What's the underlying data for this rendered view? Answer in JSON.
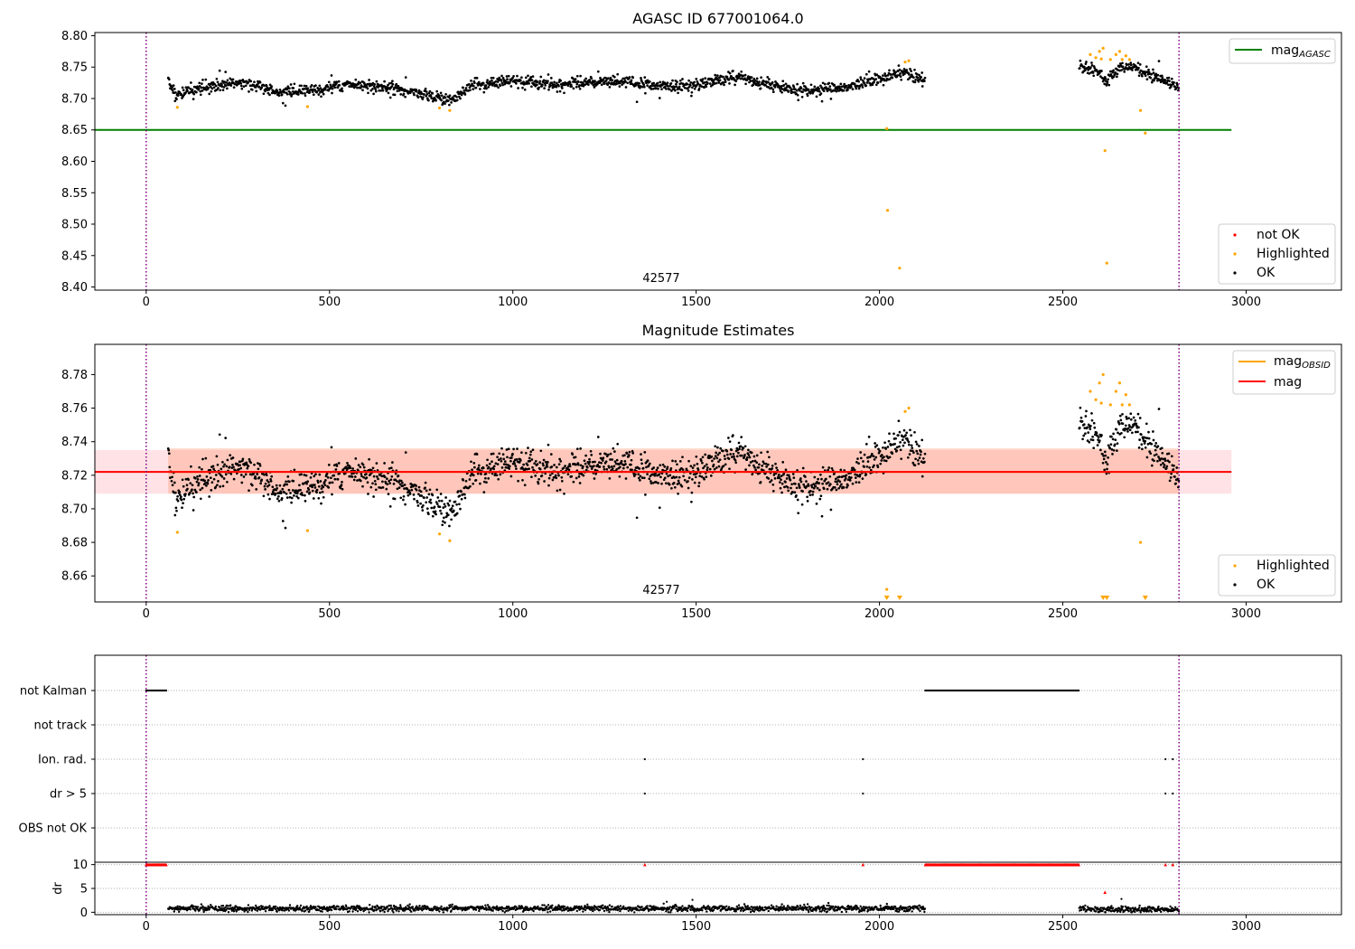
{
  "chart_data": [
    {
      "panel": "top",
      "type": "scatter",
      "title": "AGASC ID 677001064.0",
      "xlim": [
        -140,
        3260
      ],
      "ylim": [
        8.395,
        8.805
      ],
      "xticks": [
        0,
        500,
        1000,
        1500,
        2000,
        2500,
        3000
      ],
      "yticks": [
        "8.40",
        "8.45",
        "8.50",
        "8.55",
        "8.60",
        "8.65",
        "8.70",
        "8.75",
        "8.80"
      ],
      "obsid_annotation": {
        "text": "42577",
        "x": 1395
      },
      "vlines": [
        0,
        2817
      ],
      "hlines": [
        {
          "name": "mag_AGASC",
          "y": 8.65,
          "x": [
            -140,
            2960
          ],
          "color": "#008000"
        }
      ],
      "series": [
        {
          "name": "OK",
          "color": "#000000",
          "segments": [
            {
              "x": [
                60,
                2125
              ],
              "knots": [
                [
                  60,
                  8.73
                ],
                [
                  80,
                  8.705
                ],
                [
                  150,
                  8.715
                ],
                [
                  250,
                  8.728
                ],
                [
                  350,
                  8.712
                ],
                [
                  450,
                  8.712
                ],
                [
                  550,
                  8.722
                ],
                [
                  650,
                  8.718
                ],
                [
                  750,
                  8.708
                ],
                [
                  830,
                  8.698
                ],
                [
                  900,
                  8.722
                ],
                [
                  1000,
                  8.728
                ],
                [
                  1100,
                  8.722
                ],
                [
                  1200,
                  8.725
                ],
                [
                  1300,
                  8.728
                ],
                [
                  1400,
                  8.718
                ],
                [
                  1500,
                  8.722
                ],
                [
                  1600,
                  8.735
                ],
                [
                  1700,
                  8.722
                ],
                [
                  1800,
                  8.712
                ],
                [
                  1900,
                  8.718
                ],
                [
                  2000,
                  8.73
                ],
                [
                  2060,
                  8.742
                ],
                [
                  2125,
                  8.728
                ]
              ],
              "noise": 0.006
            },
            {
              "x": [
                2545,
                2817
              ],
              "knots": [
                [
                  2545,
                  8.752
                ],
                [
                  2600,
                  8.742
                ],
                [
                  2620,
                  8.73
                ],
                [
                  2660,
                  8.752
                ],
                [
                  2700,
                  8.748
                ],
                [
                  2750,
                  8.735
                ],
                [
                  2817,
                  8.72
                ]
              ],
              "noise": 0.006
            }
          ]
        },
        {
          "name": "Highlighted",
          "color": "#ffa500",
          "points": [
            [
              85,
              8.686
            ],
            [
              440,
              8.687
            ],
            [
              800,
              8.685
            ],
            [
              828,
              8.681
            ],
            [
              2020,
              8.652
            ],
            [
              2022,
              8.522
            ],
            [
              2055,
              8.43
            ],
            [
              2070,
              8.758
            ],
            [
              2080,
              8.76
            ],
            [
              2575,
              8.77
            ],
            [
              2590,
              8.765
            ],
            [
              2600,
              8.775
            ],
            [
              2610,
              8.78
            ],
            [
              2605,
              8.763
            ],
            [
              2615,
              8.617
            ],
            [
              2620,
              8.438
            ],
            [
              2630,
              8.762
            ],
            [
              2645,
              8.77
            ],
            [
              2655,
              8.775
            ],
            [
              2662,
              8.762
            ],
            [
              2672,
              8.768
            ],
            [
              2682,
              8.762
            ],
            [
              2712,
              8.681
            ],
            [
              2725,
              8.645
            ]
          ]
        },
        {
          "name": "not OK",
          "color": "#ff0000",
          "points": []
        }
      ],
      "legend_upper": [
        "mag_AGASC"
      ],
      "legend_lower": [
        "not OK",
        "Highlighted",
        "OK"
      ]
    },
    {
      "panel": "middle",
      "type": "scatter",
      "title": "Magnitude Estimates",
      "xlim": [
        -140,
        3260
      ],
      "ylim": [
        8.6445,
        8.798
      ],
      "xticks": [
        0,
        500,
        1000,
        1500,
        2000,
        2500,
        3000
      ],
      "yticks": [
        "8.66",
        "8.68",
        "8.70",
        "8.72",
        "8.74",
        "8.76",
        "8.78"
      ],
      "obsid_annotation": {
        "text": "42577",
        "x": 1395
      },
      "vlines": [
        0,
        2817
      ],
      "mag": {
        "y": 8.722,
        "band": [
          8.709,
          8.735
        ],
        "x": [
          -140,
          2960
        ],
        "line_color": "#ff0000",
        "band_color": "#ffb6c1"
      },
      "mag_obsid": {
        "y": 8.722,
        "band": [
          8.709,
          8.736
        ],
        "x": [
          60,
          2817
        ],
        "line_color": "#ffa500",
        "band_color": "#ffa07a"
      },
      "series": [
        {
          "name": "OK",
          "color": "#000000",
          "segments": [
            {
              "x": [
                60,
                2125
              ],
              "knots": [
                [
                  60,
                  8.733
                ],
                [
                  80,
                  8.705
                ],
                [
                  150,
                  8.715
                ],
                [
                  250,
                  8.728
                ],
                [
                  350,
                  8.712
                ],
                [
                  450,
                  8.712
                ],
                [
                  550,
                  8.722
                ],
                [
                  650,
                  8.718
                ],
                [
                  750,
                  8.708
                ],
                [
                  830,
                  8.698
                ],
                [
                  900,
                  8.722
                ],
                [
                  1000,
                  8.728
                ],
                [
                  1100,
                  8.722
                ],
                [
                  1200,
                  8.725
                ],
                [
                  1300,
                  8.728
                ],
                [
                  1400,
                  8.718
                ],
                [
                  1500,
                  8.722
                ],
                [
                  1600,
                  8.735
                ],
                [
                  1700,
                  8.722
                ],
                [
                  1800,
                  8.712
                ],
                [
                  1900,
                  8.718
                ],
                [
                  2000,
                  8.73
                ],
                [
                  2060,
                  8.742
                ],
                [
                  2125,
                  8.728
                ]
              ],
              "noise": 0.006
            },
            {
              "x": [
                2545,
                2817
              ],
              "knots": [
                [
                  2545,
                  8.752
                ],
                [
                  2600,
                  8.742
                ],
                [
                  2620,
                  8.73
                ],
                [
                  2660,
                  8.752
                ],
                [
                  2700,
                  8.748
                ],
                [
                  2750,
                  8.735
                ],
                [
                  2817,
                  8.72
                ]
              ],
              "noise": 0.006
            }
          ]
        },
        {
          "name": "Highlighted",
          "color": "#ffa500",
          "points": [
            [
              85,
              8.686
            ],
            [
              440,
              8.687
            ],
            [
              800,
              8.685
            ],
            [
              828,
              8.681
            ],
            [
              2020,
              8.652
            ],
            [
              2070,
              8.758
            ],
            [
              2080,
              8.76
            ],
            [
              2575,
              8.77
            ],
            [
              2590,
              8.765
            ],
            [
              2600,
              8.775
            ],
            [
              2610,
              8.78
            ],
            [
              2605,
              8.763
            ],
            [
              2630,
              8.762
            ],
            [
              2645,
              8.77
            ],
            [
              2655,
              8.775
            ],
            [
              2662,
              8.762
            ],
            [
              2672,
              8.768
            ],
            [
              2682,
              8.762
            ],
            [
              2712,
              8.68
            ]
          ]
        },
        {
          "name": "off-scale",
          "color": "#ffa500",
          "markers": [
            2020,
            2055,
            2610,
            2620,
            2725
          ]
        }
      ],
      "legend_upper": [
        "mag_OBSID",
        "mag"
      ],
      "legend_lower": [
        "Highlighted",
        "OK"
      ]
    },
    {
      "panel": "flags",
      "type": "scatter",
      "xlim": [
        -140,
        3260
      ],
      "rows": [
        "not Kalman",
        "not track",
        "Ion. rad.",
        "dr > 5",
        "OBS not OK"
      ],
      "flags": {
        "not Kalman": [
          [
            0,
            55
          ],
          [
            2125,
            2545
          ]
        ],
        "not track": [],
        "Ion. rad.": [
          [
            1360,
            1360
          ],
          [
            1955,
            1955
          ],
          [
            2780,
            2780
          ],
          [
            2800,
            2800
          ]
        ],
        "dr > 5": [
          [
            1360,
            1360
          ],
          [
            1955,
            1955
          ],
          [
            2780,
            2780
          ],
          [
            2800,
            2800
          ]
        ],
        "OBS not OK": []
      },
      "vlines": [
        0,
        2817
      ]
    },
    {
      "panel": "dr",
      "type": "scatter",
      "ylabel": "dr",
      "xlim": [
        -140,
        3260
      ],
      "ylim": [
        -0.5,
        10.5
      ],
      "xticks": [
        0,
        500,
        1000,
        1500,
        2000,
        2500,
        3000
      ],
      "yticks": [
        "0",
        "5",
        "10"
      ],
      "series": [
        {
          "name": "dr",
          "color": "#000000",
          "segments": [
            {
              "x": [
                60,
                2125
              ],
              "mean": 0.8
            },
            {
              "x": [
                2545,
                2817
              ],
              "mean": 0.6
            }
          ],
          "outliers": [
            [
              1420,
              2.2
            ],
            [
              1490,
              2.6
            ],
            [
              2660,
              2.8
            ]
          ]
        },
        {
          "name": "dr clipped",
          "color": "#ff0000",
          "y": 10,
          "ranges": [
            [
              0,
              55
            ],
            [
              2125,
              2545
            ]
          ],
          "points": [
            [
              1360,
              10
            ],
            [
              1955,
              10
            ],
            [
              2780,
              10
            ],
            [
              2800,
              10
            ],
            [
              2615,
              4.2
            ]
          ]
        }
      ],
      "vlines": [
        0,
        2817
      ]
    }
  ]
}
